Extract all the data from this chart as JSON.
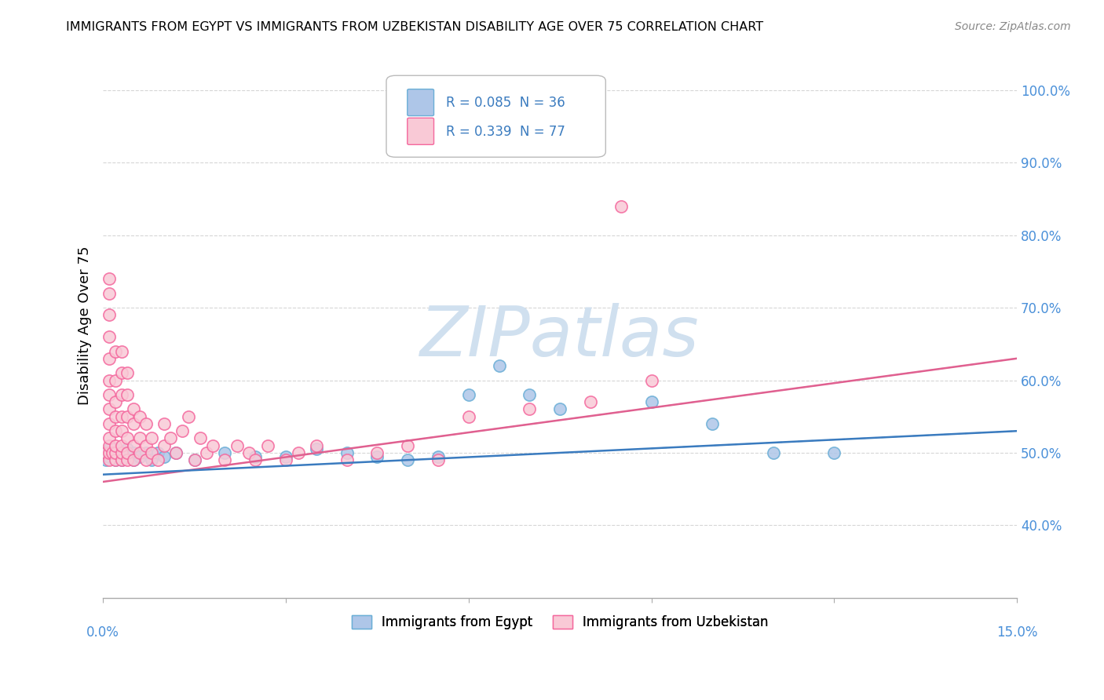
{
  "title": "IMMIGRANTS FROM EGYPT VS IMMIGRANTS FROM UZBEKISTAN DISABILITY AGE OVER 75 CORRELATION CHART",
  "source": "Source: ZipAtlas.com",
  "ylabel": "Disability Age Over 75",
  "legend_label1": "Immigrants from Egypt",
  "legend_label2": "Immigrants from Uzbekistan",
  "xlim": [
    0.0,
    0.15
  ],
  "ylim": [
    0.3,
    1.05
  ],
  "y_ticks": [
    0.4,
    0.5,
    0.6,
    0.7,
    0.8,
    0.9,
    1.0
  ],
  "y_tick_labels": [
    "40.0%",
    "50.0%",
    "60.0%",
    "70.0%",
    "80.0%",
    "90.0%",
    "100.0%"
  ],
  "egypt_scatter_face": "#aec6e8",
  "egypt_scatter_edge": "#6aaed6",
  "uzbekistan_scatter_face": "#f9c9d6",
  "uzbekistan_scatter_edge": "#f4679d",
  "egypt_trend_color": "#3a7bbf",
  "uzbekistan_trend_color": "#e06090",
  "background_color": "#ffffff",
  "grid_color": "#cccccc",
  "watermark_color": "#d0e0ef",
  "egypt_R": 0.085,
  "egypt_N": 36,
  "uzbekistan_R": 0.339,
  "uzbekistan_N": 77,
  "egypt_points": [
    [
      0.0005,
      0.49
    ],
    [
      0.001,
      0.495
    ],
    [
      0.001,
      0.505
    ],
    [
      0.0015,
      0.5
    ],
    [
      0.002,
      0.49
    ],
    [
      0.002,
      0.5
    ],
    [
      0.002,
      0.505
    ],
    [
      0.003,
      0.49
    ],
    [
      0.003,
      0.5
    ],
    [
      0.004,
      0.495
    ],
    [
      0.004,
      0.505
    ],
    [
      0.005,
      0.49
    ],
    [
      0.005,
      0.5
    ],
    [
      0.006,
      0.495
    ],
    [
      0.007,
      0.5
    ],
    [
      0.008,
      0.49
    ],
    [
      0.009,
      0.5
    ],
    [
      0.01,
      0.495
    ],
    [
      0.012,
      0.5
    ],
    [
      0.015,
      0.49
    ],
    [
      0.02,
      0.5
    ],
    [
      0.025,
      0.495
    ],
    [
      0.03,
      0.495
    ],
    [
      0.035,
      0.505
    ],
    [
      0.04,
      0.5
    ],
    [
      0.045,
      0.495
    ],
    [
      0.05,
      0.49
    ],
    [
      0.055,
      0.495
    ],
    [
      0.06,
      0.58
    ],
    [
      0.065,
      0.62
    ],
    [
      0.07,
      0.58
    ],
    [
      0.075,
      0.56
    ],
    [
      0.09,
      0.57
    ],
    [
      0.1,
      0.54
    ],
    [
      0.11,
      0.5
    ],
    [
      0.12,
      0.5
    ]
  ],
  "uzbekistan_points": [
    [
      0.0005,
      0.5
    ],
    [
      0.001,
      0.49
    ],
    [
      0.001,
      0.5
    ],
    [
      0.001,
      0.51
    ],
    [
      0.001,
      0.52
    ],
    [
      0.001,
      0.54
    ],
    [
      0.001,
      0.56
    ],
    [
      0.001,
      0.58
    ],
    [
      0.001,
      0.6
    ],
    [
      0.001,
      0.63
    ],
    [
      0.001,
      0.66
    ],
    [
      0.001,
      0.69
    ],
    [
      0.001,
      0.72
    ],
    [
      0.001,
      0.74
    ],
    [
      0.0015,
      0.5
    ],
    [
      0.002,
      0.49
    ],
    [
      0.002,
      0.5
    ],
    [
      0.002,
      0.51
    ],
    [
      0.002,
      0.53
    ],
    [
      0.002,
      0.55
    ],
    [
      0.002,
      0.57
    ],
    [
      0.002,
      0.6
    ],
    [
      0.002,
      0.64
    ],
    [
      0.003,
      0.49
    ],
    [
      0.003,
      0.5
    ],
    [
      0.003,
      0.51
    ],
    [
      0.003,
      0.53
    ],
    [
      0.003,
      0.55
    ],
    [
      0.003,
      0.58
    ],
    [
      0.003,
      0.61
    ],
    [
      0.003,
      0.64
    ],
    [
      0.004,
      0.49
    ],
    [
      0.004,
      0.5
    ],
    [
      0.004,
      0.52
    ],
    [
      0.004,
      0.55
    ],
    [
      0.004,
      0.58
    ],
    [
      0.004,
      0.61
    ],
    [
      0.005,
      0.49
    ],
    [
      0.005,
      0.51
    ],
    [
      0.005,
      0.54
    ],
    [
      0.005,
      0.56
    ],
    [
      0.006,
      0.5
    ],
    [
      0.006,
      0.52
    ],
    [
      0.006,
      0.55
    ],
    [
      0.007,
      0.49
    ],
    [
      0.007,
      0.51
    ],
    [
      0.007,
      0.54
    ],
    [
      0.008,
      0.5
    ],
    [
      0.008,
      0.52
    ],
    [
      0.009,
      0.49
    ],
    [
      0.01,
      0.51
    ],
    [
      0.01,
      0.54
    ],
    [
      0.011,
      0.52
    ],
    [
      0.012,
      0.5
    ],
    [
      0.013,
      0.53
    ],
    [
      0.014,
      0.55
    ],
    [
      0.015,
      0.49
    ],
    [
      0.016,
      0.52
    ],
    [
      0.017,
      0.5
    ],
    [
      0.018,
      0.51
    ],
    [
      0.02,
      0.49
    ],
    [
      0.022,
      0.51
    ],
    [
      0.024,
      0.5
    ],
    [
      0.025,
      0.49
    ],
    [
      0.027,
      0.51
    ],
    [
      0.03,
      0.49
    ],
    [
      0.032,
      0.5
    ],
    [
      0.035,
      0.51
    ],
    [
      0.04,
      0.49
    ],
    [
      0.045,
      0.5
    ],
    [
      0.05,
      0.51
    ],
    [
      0.055,
      0.49
    ],
    [
      0.06,
      0.55
    ],
    [
      0.07,
      0.56
    ],
    [
      0.08,
      0.57
    ],
    [
      0.085,
      0.84
    ],
    [
      0.09,
      0.6
    ]
  ]
}
